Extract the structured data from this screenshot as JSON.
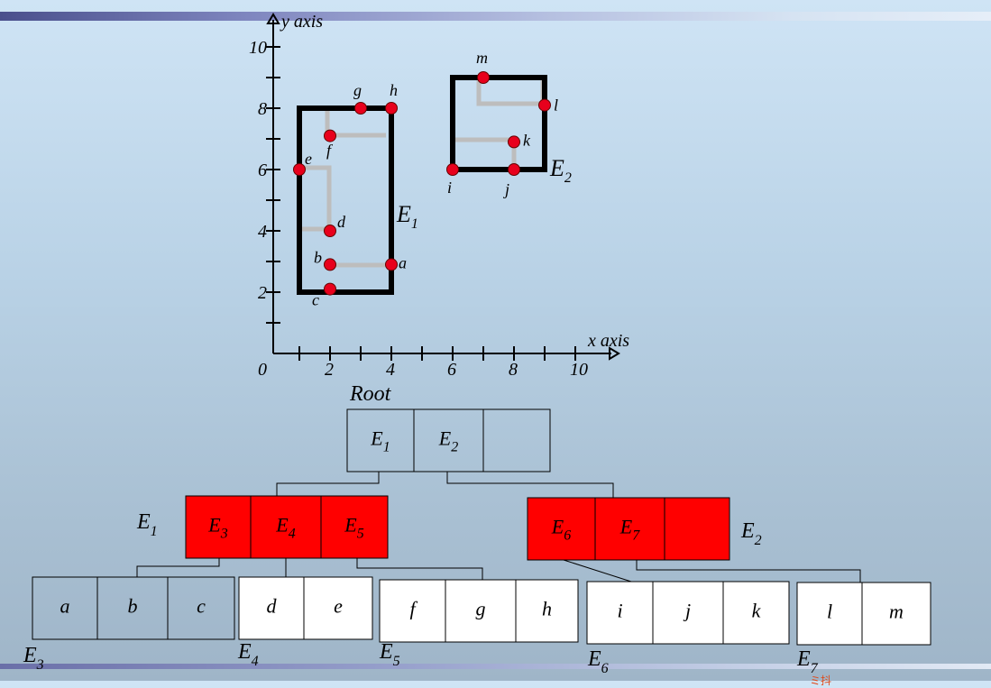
{
  "plot": {
    "x_axis_label": "x axis",
    "y_axis_label": "y axis",
    "x_ticks": [
      "0",
      "2",
      "4",
      "6",
      "8",
      "10"
    ],
    "y_ticks": [
      "2",
      "4",
      "6",
      "8",
      "10"
    ],
    "points": [
      {
        "name": "a",
        "x": 4.0,
        "y": 2.9
      },
      {
        "name": "b",
        "x": 2.0,
        "y": 2.9
      },
      {
        "name": "c",
        "x": 2.0,
        "y": 2.1
      },
      {
        "name": "d",
        "x": 2.0,
        "y": 4.0
      },
      {
        "name": "e",
        "x": 1.0,
        "y": 6.0
      },
      {
        "name": "f",
        "x": 2.0,
        "y": 7.1
      },
      {
        "name": "g",
        "x": 3.0,
        "y": 8.0
      },
      {
        "name": "h",
        "x": 4.0,
        "y": 8.0
      },
      {
        "name": "i",
        "x": 6.0,
        "y": 6.0
      },
      {
        "name": "j",
        "x": 8.0,
        "y": 6.0
      },
      {
        "name": "k",
        "x": 8.0,
        "y": 6.9
      },
      {
        "name": "l",
        "x": 9.0,
        "y": 8.1
      },
      {
        "name": "m",
        "x": 7.0,
        "y": 9.0
      }
    ],
    "mbrs": [
      {
        "name": "E",
        "sub": "1",
        "x": [
          1,
          4
        ],
        "y": [
          2,
          8
        ]
      },
      {
        "name": "E",
        "sub": "2",
        "x": [
          6,
          9
        ],
        "y": [
          6,
          9
        ]
      }
    ],
    "colors": {
      "point": "#e8001c",
      "mbr": "#000000",
      "inner": "#bdbdbd"
    }
  },
  "tree": {
    "root_label": "Root",
    "root": [
      "E1",
      "E2",
      ""
    ],
    "level1": [
      {
        "label": "E1",
        "cells": [
          "E3",
          "E4",
          "E5"
        ]
      },
      {
        "label": "E2",
        "cells": [
          "E6",
          "E7",
          ""
        ]
      }
    ],
    "leaves": [
      {
        "label": "E3",
        "cells": [
          "a",
          "b",
          "c"
        ]
      },
      {
        "label": "E4",
        "cells": [
          "d",
          "e"
        ]
      },
      {
        "label": "E5",
        "cells": [
          "f",
          "g",
          "h"
        ]
      },
      {
        "label": "E6",
        "cells": [
          "i",
          "j",
          "k"
        ]
      },
      {
        "label": "E7",
        "cells": [
          "l",
          "m"
        ]
      }
    ],
    "colors": {
      "highlight": "#ff0000",
      "leaf_white": "#ffffff"
    }
  },
  "watermark": "ミ抖"
}
